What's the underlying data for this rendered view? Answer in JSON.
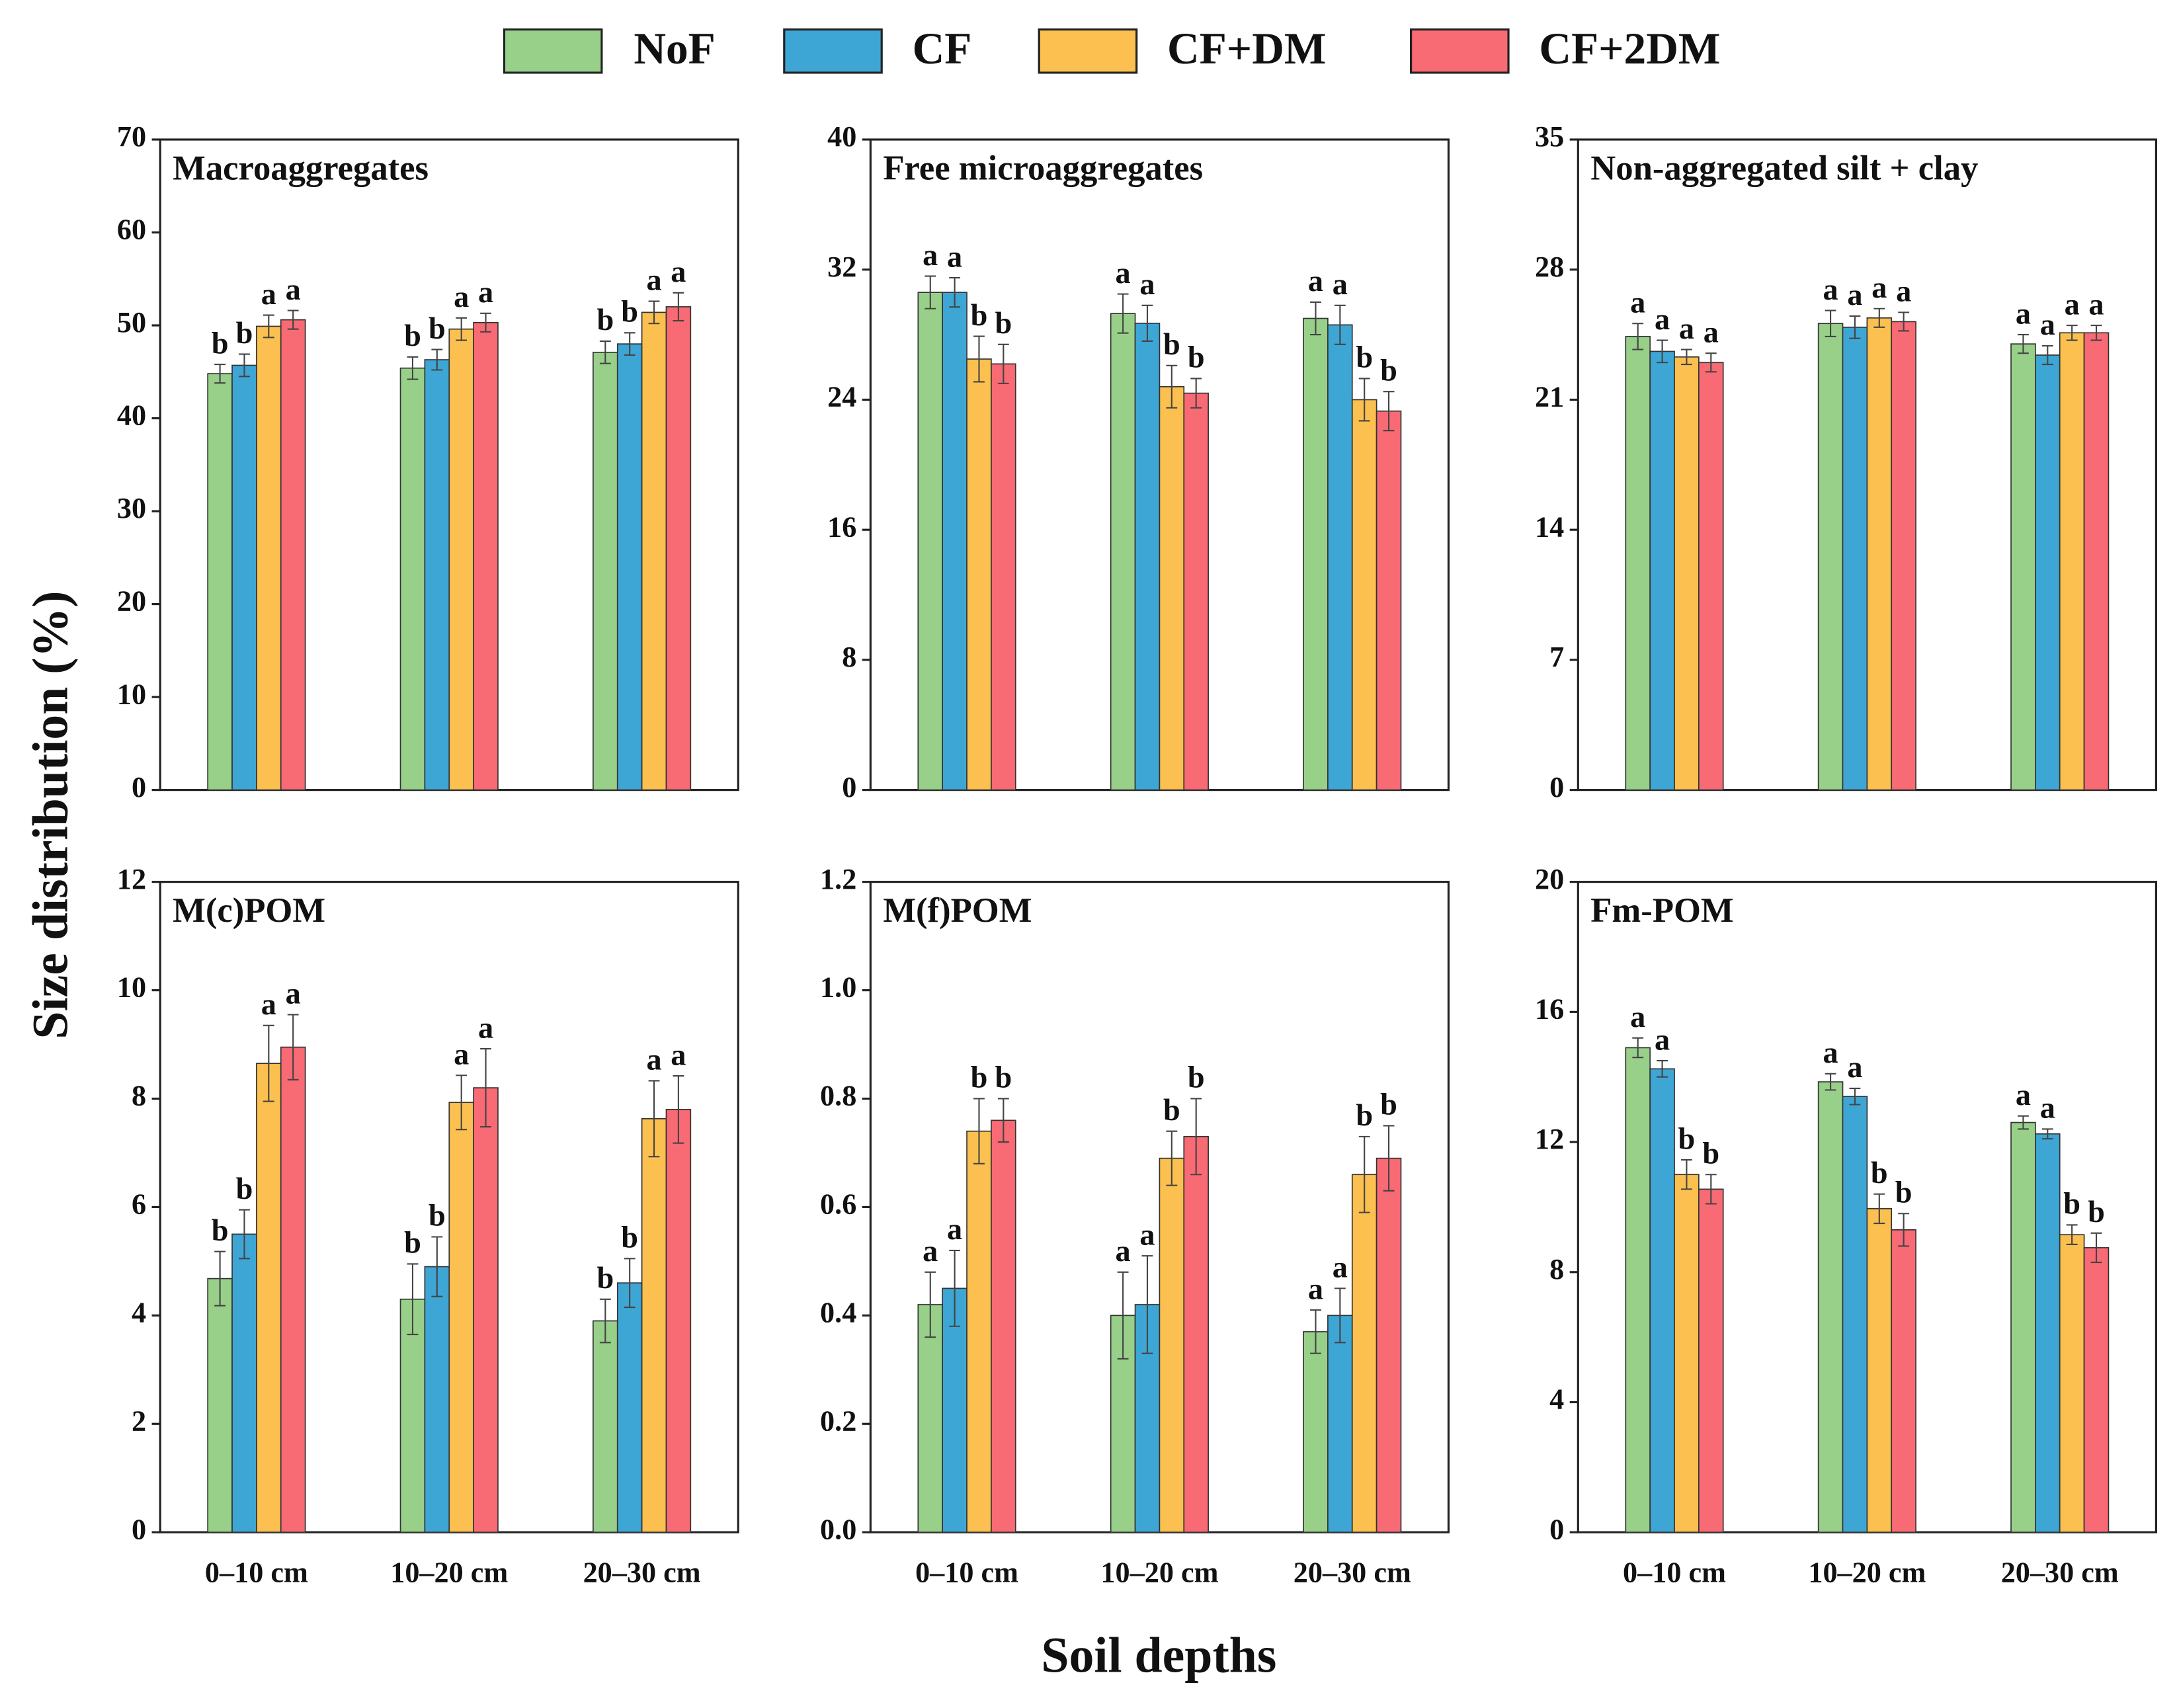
{
  "ylabel": "Size distribution (%)",
  "xlabel": "Soil depths",
  "chart_data": [
    {
      "type": "bar",
      "title": "Macroaggregates",
      "categories": [
        null,
        null,
        null
      ],
      "ylim": [
        0,
        70
      ],
      "yticks": [
        0,
        10,
        20,
        30,
        40,
        50,
        60,
        70
      ],
      "series": [
        {
          "name": "NoF",
          "color": "#98d08a",
          "values": [
            44.8,
            45.4,
            47.1
          ],
          "errors": [
            1.0,
            1.2,
            1.2
          ],
          "letters": [
            "b",
            "b",
            "b"
          ]
        },
        {
          "name": "CF",
          "color": "#3ea6d4",
          "values": [
            45.7,
            46.3,
            48.0
          ],
          "errors": [
            1.2,
            1.1,
            1.2
          ],
          "letters": [
            "b",
            "b",
            "b"
          ]
        },
        {
          "name": "CF+DM",
          "color": "#fbc04f",
          "values": [
            49.9,
            49.6,
            51.4
          ],
          "errors": [
            1.2,
            1.2,
            1.2
          ],
          "letters": [
            "a",
            "a",
            "a"
          ]
        },
        {
          "name": "CF+2DM",
          "color": "#f86a74",
          "values": [
            50.6,
            50.3,
            52.0
          ],
          "errors": [
            1.0,
            1.0,
            1.5
          ],
          "letters": [
            "a",
            "a",
            "a"
          ]
        }
      ]
    },
    {
      "type": "bar",
      "title": "Free microaggregates",
      "categories": [
        null,
        null,
        null
      ],
      "ylim": [
        0,
        40
      ],
      "yticks": [
        0,
        8,
        16,
        24,
        32,
        40
      ],
      "series": [
        {
          "name": "NoF",
          "color": "#98d08a",
          "values": [
            30.6,
            29.3,
            29.0
          ],
          "errors": [
            1.0,
            1.2,
            1.0
          ],
          "letters": [
            "a",
            "a",
            "a"
          ]
        },
        {
          "name": "CF",
          "color": "#3ea6d4",
          "values": [
            30.6,
            28.7,
            28.6
          ],
          "errors": [
            0.9,
            1.1,
            1.2
          ],
          "letters": [
            "a",
            "a",
            "a"
          ]
        },
        {
          "name": "CF+DM",
          "color": "#fbc04f",
          "values": [
            26.5,
            24.8,
            24.0
          ],
          "errors": [
            1.4,
            1.3,
            1.3
          ],
          "letters": [
            "b",
            "b",
            "b"
          ]
        },
        {
          "name": "CF+2DM",
          "color": "#f86a74",
          "values": [
            26.2,
            24.4,
            23.3
          ],
          "errors": [
            1.2,
            0.9,
            1.2
          ],
          "letters": [
            "b",
            "b",
            "b"
          ]
        }
      ]
    },
    {
      "type": "bar",
      "title": "Non-aggregated silt + clay",
      "categories": [
        null,
        null,
        null
      ],
      "ylim": [
        0,
        35
      ],
      "yticks": [
        0,
        7,
        14,
        21,
        28,
        35
      ],
      "series": [
        {
          "name": "NoF",
          "color": "#98d08a",
          "values": [
            24.4,
            25.1,
            24.0
          ],
          "errors": [
            0.7,
            0.7,
            0.5
          ],
          "letters": [
            "a",
            "a",
            "a"
          ]
        },
        {
          "name": "CF",
          "color": "#3ea6d4",
          "values": [
            23.6,
            24.9,
            23.4
          ],
          "errors": [
            0.6,
            0.6,
            0.5
          ],
          "letters": [
            "a",
            "a",
            "a"
          ]
        },
        {
          "name": "CF+DM",
          "color": "#fbc04f",
          "values": [
            23.3,
            25.4,
            24.6
          ],
          "errors": [
            0.4,
            0.5,
            0.4
          ],
          "letters": [
            "a",
            "a",
            "a"
          ]
        },
        {
          "name": "CF+2DM",
          "color": "#f86a74",
          "values": [
            23.0,
            25.2,
            24.6
          ],
          "errors": [
            0.5,
            0.5,
            0.4
          ],
          "letters": [
            "a",
            "a",
            "a"
          ]
        }
      ]
    },
    {
      "type": "bar",
      "title": "M(c)POM",
      "categories": [
        "0–10 cm",
        "10–20 cm",
        "20–30 cm"
      ],
      "ylim": [
        0,
        12
      ],
      "yticks": [
        0,
        2,
        4,
        6,
        8,
        10,
        12
      ],
      "series": [
        {
          "name": "NoF",
          "color": "#98d08a",
          "values": [
            4.68,
            4.3,
            3.9
          ],
          "errors": [
            0.5,
            0.65,
            0.4
          ],
          "letters": [
            "b",
            "b",
            "b"
          ]
        },
        {
          "name": "CF",
          "color": "#3ea6d4",
          "values": [
            5.5,
            4.9,
            4.6
          ],
          "errors": [
            0.45,
            0.55,
            0.45
          ],
          "letters": [
            "b",
            "b",
            "b"
          ]
        },
        {
          "name": "CF+DM",
          "color": "#fbc04f",
          "values": [
            8.65,
            7.93,
            7.63
          ],
          "errors": [
            0.7,
            0.5,
            0.7
          ],
          "letters": [
            "a",
            "a",
            "a"
          ]
        },
        {
          "name": "CF+2DM",
          "color": "#f86a74",
          "values": [
            8.95,
            8.2,
            7.8
          ],
          "errors": [
            0.6,
            0.72,
            0.62
          ],
          "letters": [
            "a",
            "a",
            "a"
          ]
        }
      ]
    },
    {
      "type": "bar",
      "title": "M(f)POM",
      "categories": [
        "0–10 cm",
        "10–20 cm",
        "20–30 cm"
      ],
      "ylim": [
        0,
        1.2
      ],
      "yticks": [
        {
          "value": 0,
          "label": "0.0"
        },
        0.2,
        0.4,
        0.6,
        0.8,
        {
          "value": 1,
          "label": "1.0"
        },
        1.2
      ],
      "series": [
        {
          "name": "NoF",
          "color": "#98d08a",
          "values": [
            0.42,
            0.4,
            0.37
          ],
          "errors": [
            0.06,
            0.08,
            0.04
          ],
          "letters": [
            "a",
            "a",
            "a"
          ]
        },
        {
          "name": "CF",
          "color": "#3ea6d4",
          "values": [
            0.45,
            0.42,
            0.4
          ],
          "errors": [
            0.07,
            0.09,
            0.05
          ],
          "letters": [
            "a",
            "a",
            "a"
          ]
        },
        {
          "name": "CF+DM",
          "color": "#fbc04f",
          "values": [
            0.74,
            0.69,
            0.66
          ],
          "errors": [
            0.06,
            0.05,
            0.07
          ],
          "letters": [
            "b",
            "b",
            "b"
          ]
        },
        {
          "name": "CF+2DM",
          "color": "#f86a74",
          "values": [
            0.76,
            0.73,
            0.69
          ],
          "errors": [
            0.04,
            0.07,
            0.06
          ],
          "letters": [
            "b",
            "b",
            "b"
          ]
        }
      ]
    },
    {
      "type": "bar",
      "title": "Fm-POM",
      "categories": [
        "0–10 cm",
        "10–20 cm",
        "20–30 cm"
      ],
      "ylim": [
        0,
        20
      ],
      "yticks": [
        0,
        4,
        8,
        12,
        16,
        20
      ],
      "series": [
        {
          "name": "NoF",
          "color": "#98d08a",
          "values": [
            14.9,
            13.85,
            12.6
          ],
          "errors": [
            0.3,
            0.25,
            0.2
          ],
          "letters": [
            "a",
            "a",
            "a"
          ]
        },
        {
          "name": "CF",
          "color": "#3ea6d4",
          "values": [
            14.25,
            13.4,
            12.25
          ],
          "errors": [
            0.25,
            0.25,
            0.15
          ],
          "letters": [
            "a",
            "a",
            "a"
          ]
        },
        {
          "name": "CF+DM",
          "color": "#fbc04f",
          "values": [
            11.0,
            9.95,
            9.15
          ],
          "errors": [
            0.45,
            0.45,
            0.3
          ],
          "letters": [
            "b",
            "b",
            "b"
          ]
        },
        {
          "name": "CF+2DM",
          "color": "#f86a74",
          "values": [
            10.55,
            9.3,
            8.75
          ],
          "errors": [
            0.45,
            0.5,
            0.45
          ],
          "letters": [
            "b",
            "b",
            "b"
          ]
        }
      ]
    }
  ]
}
